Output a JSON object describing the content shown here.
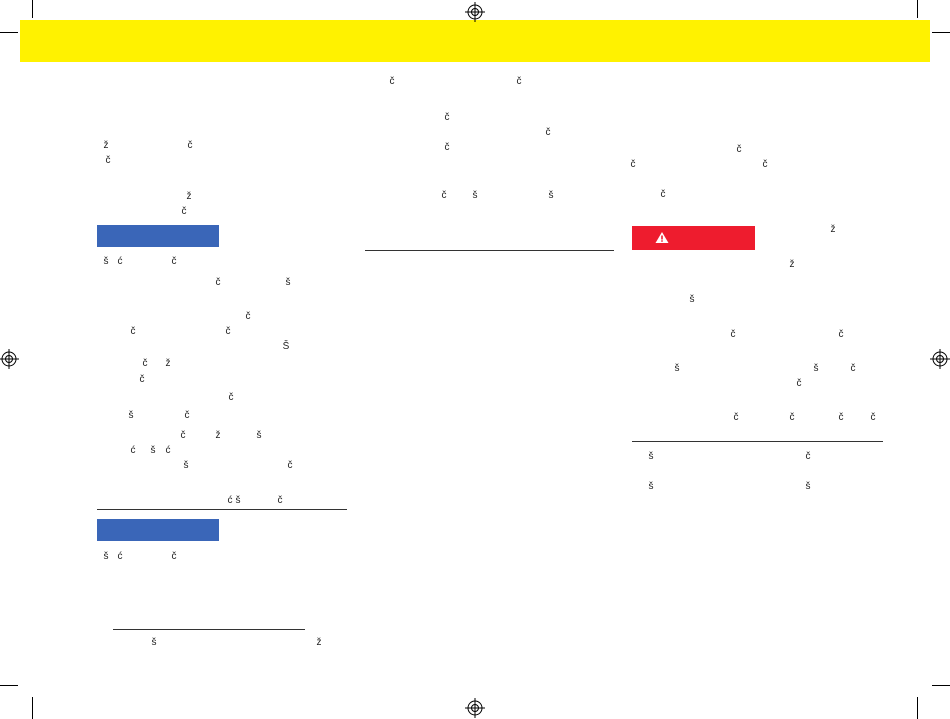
{
  "left": [
    "ž",
    "č",
    "č",
    "ž",
    "č",
    "š",
    "ć",
    "č",
    "č",
    "š",
    "č",
    "č",
    "č",
    "Š",
    "č",
    "ž",
    "č",
    "č",
    "š",
    "č",
    "č",
    "ž",
    "š",
    "ć",
    "š",
    "ć",
    "š",
    "č",
    "ć",
    "š",
    "č",
    "š",
    "ć",
    "č",
    "š",
    "ž"
  ],
  "middle": [
    "č",
    "č",
    "č",
    "č",
    "č",
    "č",
    "š",
    "š"
  ],
  "right": [
    "č",
    "č",
    "č",
    "č",
    "ž",
    "ž",
    "š",
    "č",
    "č",
    "š",
    "š",
    "č",
    "č",
    "č",
    "č",
    "č",
    "č",
    "š",
    "č",
    "š",
    "š"
  ]
}
